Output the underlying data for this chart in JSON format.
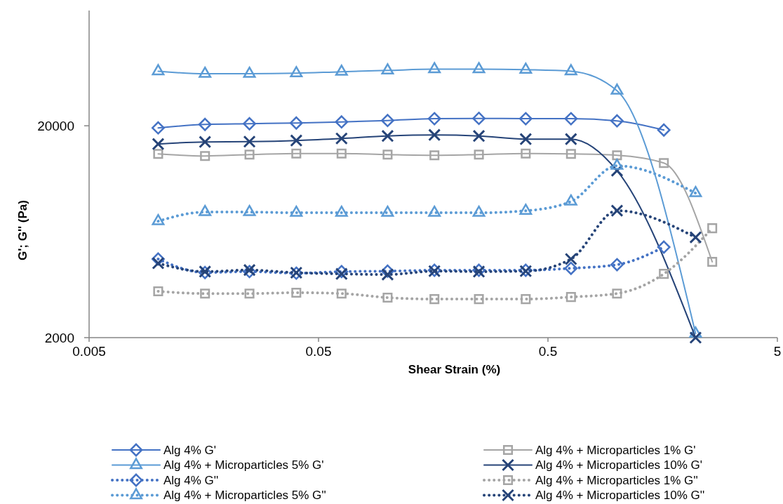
{
  "chart_data": {
    "type": "line",
    "xlabel": "Shear Strain (%)",
    "ylabel": "G'; G'' (Pa)",
    "log": "xy",
    "xlim": [
      0.005,
      5
    ],
    "xticks": [
      0.005,
      0.05,
      0.5,
      5
    ],
    "ylim": [
      2000,
      70000
    ],
    "yticks": [
      2000,
      20000
    ],
    "grid": false,
    "legend": "bottom",
    "series": [
      {
        "name": "Alg 4% G'",
        "color": "#4472c4",
        "marker": "diamond",
        "line_style": "solid",
        "x": [
          0.01,
          0.016,
          0.025,
          0.04,
          0.063,
          0.1,
          0.16,
          0.25,
          0.4,
          0.63,
          1.0,
          1.6
        ],
        "values": [
          19550,
          20300,
          20460,
          20620,
          20860,
          21180,
          21600,
          21680,
          21600,
          21600,
          21100,
          19100
        ]
      },
      {
        "name": "Alg 4% + Microparticles 1% G'",
        "color": "#a5a5a5",
        "marker": "square",
        "line_style": "solid",
        "x": [
          0.01,
          0.016,
          0.025,
          0.04,
          0.063,
          0.1,
          0.16,
          0.25,
          0.4,
          0.63,
          1.0,
          1.6,
          2.6
        ],
        "values": [
          14740,
          14410,
          14630,
          14800,
          14800,
          14630,
          14520,
          14630,
          14800,
          14740,
          14520,
          13350,
          4560
        ]
      },
      {
        "name": "Alg 4% + Microparticles 5% G'",
        "color": "#5b9bd5",
        "marker": "triangle",
        "line_style": "solid",
        "x": [
          0.01,
          0.016,
          0.025,
          0.04,
          0.063,
          0.1,
          0.16,
          0.25,
          0.4,
          0.63,
          1.0,
          2.2
        ],
        "values": [
          36200,
          35200,
          35200,
          35400,
          36000,
          36500,
          37000,
          37000,
          36800,
          36200,
          29300,
          2090
        ]
      },
      {
        "name": "Alg 4% + Microparticles 10% G'",
        "color": "#264478",
        "marker": "cross",
        "line_style": "solid",
        "x": [
          0.01,
          0.016,
          0.025,
          0.04,
          0.063,
          0.1,
          0.16,
          0.25,
          0.4,
          0.63,
          1.0,
          2.2
        ],
        "values": [
          16400,
          16780,
          16840,
          17040,
          17430,
          17910,
          18110,
          17910,
          17300,
          17300,
          12280,
          2000
        ]
      },
      {
        "name": "Alg 4% G''",
        "color": "#4472c4",
        "marker": "diamond",
        "line_style": "dotted",
        "x": [
          0.01,
          0.016,
          0.025,
          0.04,
          0.063,
          0.1,
          0.16,
          0.25,
          0.4,
          0.63,
          1.0,
          1.6
        ],
        "values": [
          4700,
          4060,
          4100,
          4030,
          4100,
          4120,
          4160,
          4160,
          4160,
          4250,
          4420,
          5350
        ]
      },
      {
        "name": "Alg 4% + Microparticles 1% G''",
        "color": "#a5a5a5",
        "marker": "square",
        "line_style": "dotted",
        "x": [
          0.01,
          0.016,
          0.025,
          0.04,
          0.063,
          0.1,
          0.16,
          0.25,
          0.4,
          0.63,
          1.0,
          1.6,
          2.6
        ],
        "values": [
          3310,
          3230,
          3230,
          3260,
          3230,
          3090,
          3040,
          3040,
          3040,
          3110,
          3230,
          4000,
          6570
        ]
      },
      {
        "name": "Alg 4% + Microparticles 5% G''",
        "color": "#5b9bd5",
        "marker": "triangle",
        "line_style": "dotted",
        "x": [
          0.01,
          0.016,
          0.025,
          0.04,
          0.063,
          0.1,
          0.16,
          0.25,
          0.4,
          0.63,
          1.0,
          2.2
        ],
        "values": [
          7090,
          7830,
          7830,
          7770,
          7770,
          7770,
          7770,
          7770,
          7940,
          8780,
          12950,
          9620
        ]
      },
      {
        "name": "Alg 4% + Microparticles 10% G''",
        "color": "#264478",
        "marker": "cross",
        "line_style": "dotted",
        "x": [
          0.01,
          0.016,
          0.025,
          0.04,
          0.063,
          0.1,
          0.16,
          0.25,
          0.4,
          0.63,
          1.0,
          2.2
        ],
        "values": [
          4490,
          4100,
          4170,
          4050,
          4000,
          3970,
          4120,
          4100,
          4120,
          4700,
          7950,
          5950
        ]
      }
    ]
  }
}
